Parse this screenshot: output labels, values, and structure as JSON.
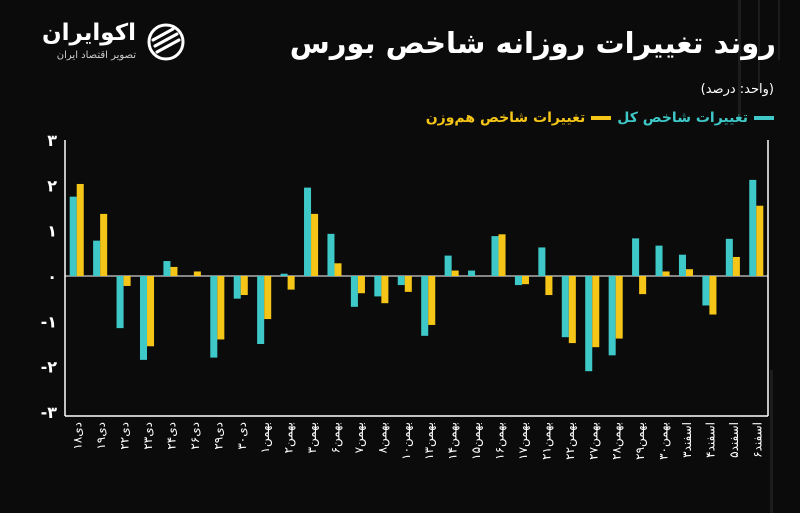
{
  "brand": {
    "name": "اکوایران",
    "tagline": "تصویر اقتصاد ایران",
    "icon": "ecoiran-logo-icon"
  },
  "title": "روند تغییرات روزانه شاخص بورس",
  "unit_label": "(واحد: درصد)",
  "colors": {
    "total": "#3ec8c8",
    "equal": "#f5c518",
    "background": "#0b0b0b",
    "axis": "#ffffff"
  },
  "chart_data": {
    "type": "bar",
    "title": "روند تغییرات روزانه شاخص بورس",
    "ylabel": "",
    "xlabel": "",
    "ylim": [
      -3,
      3
    ],
    "yticks": [
      3,
      2,
      1,
      0,
      -1,
      -2,
      -3
    ],
    "ytick_labels": [
      "۳",
      "۲",
      "۱",
      "۰",
      "-۱",
      "-۲",
      "-۳"
    ],
    "legend_position": "top-right",
    "categories": [
      "۱۸دی",
      "۱۹دی",
      "۲۲دی",
      "۲۳دی",
      "۲۴دی",
      "۲۶دی",
      "۲۹دی",
      "۳۰دی",
      "۱بهمن",
      "۲بهمن",
      "۳بهمن",
      "۶بهمن",
      "۷بهمن",
      "۸بهمن",
      "۱۰بهمن",
      "۱۳بهمن",
      "۱۴بهمن",
      "۱۵بهمن",
      "۱۶بهمن",
      "۱۷بهمن",
      "۲۱بهمن",
      "۲۲بهمن",
      "۲۷بهمن",
      "۲۸بهمن",
      "۲۹بهمن",
      "۳۰بهمن",
      "۳اسفند",
      "۴اسفند",
      "۵اسفند",
      "۶اسفند"
    ],
    "series": [
      {
        "name": "تغییرات شاخص کل",
        "color": "#3ec8c8",
        "values": [
          1.75,
          0.78,
          -1.15,
          -1.85,
          0.33,
          0.0,
          -1.8,
          -0.5,
          -1.5,
          0.05,
          1.95,
          0.93,
          -0.68,
          -0.45,
          -0.2,
          -1.32,
          0.45,
          0.12,
          0.88,
          -0.2,
          0.63,
          -1.35,
          -2.1,
          -1.75,
          0.83,
          0.67,
          0.47,
          -0.65,
          0.82,
          2.12
        ]
      },
      {
        "name": "تغییرات شاخص هم‌وزن",
        "color": "#f5c518",
        "values": [
          2.03,
          1.37,
          -0.22,
          -1.55,
          0.2,
          0.1,
          -1.4,
          -0.42,
          -0.95,
          -0.3,
          1.37,
          0.28,
          -0.38,
          -0.6,
          -0.35,
          -1.08,
          0.12,
          0.0,
          0.92,
          -0.18,
          -0.42,
          -1.48,
          -1.57,
          -1.38,
          -0.4,
          0.1,
          0.15,
          -0.85,
          0.42,
          1.55
        ]
      }
    ]
  }
}
